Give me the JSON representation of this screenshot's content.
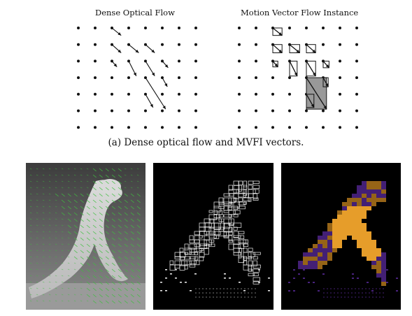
{
  "figure": {
    "left_title": "Dense Optical Flow",
    "right_title": "Motion Vector Flow Instance",
    "caption": "(a) Dense optical flow and MVFI vectors."
  },
  "colors": {
    "ink": "#111111",
    "flow_arrow": "#3fbf3f",
    "mvfi_outline": "#f2f2f2",
    "heat_low": "#5a2a9c",
    "heat_high": "#f2a52c",
    "mvfi_fill": "#999999"
  },
  "grid": {
    "rows": 7,
    "cols": 8
  },
  "flow_arrows": [
    {
      "r": 0,
      "c": 2,
      "dx": 0.55,
      "dy": 0.45
    },
    {
      "r": 1,
      "c": 2,
      "dx": 0.55,
      "dy": 0.5
    },
    {
      "r": 1,
      "c": 3,
      "dx": 0.6,
      "dy": 0.5
    },
    {
      "r": 1,
      "c": 4,
      "dx": 0.55,
      "dy": 0.5
    },
    {
      "r": 2,
      "c": 2,
      "dx": 0.3,
      "dy": 0.35
    },
    {
      "r": 2,
      "c": 3,
      "dx": 0.45,
      "dy": 0.9
    },
    {
      "r": 2,
      "c": 4,
      "dx": 0.55,
      "dy": 0.9
    },
    {
      "r": 2,
      "c": 5,
      "dx": 0.35,
      "dy": 0.4
    },
    {
      "r": 3,
      "c": 4,
      "dx": 1.2,
      "dy": 1.9
    },
    {
      "r": 3,
      "c": 5,
      "dx": 0.3,
      "dy": 0.55
    },
    {
      "r": 4,
      "c": 4,
      "dx": 0.45,
      "dy": 0.8
    }
  ]
}
